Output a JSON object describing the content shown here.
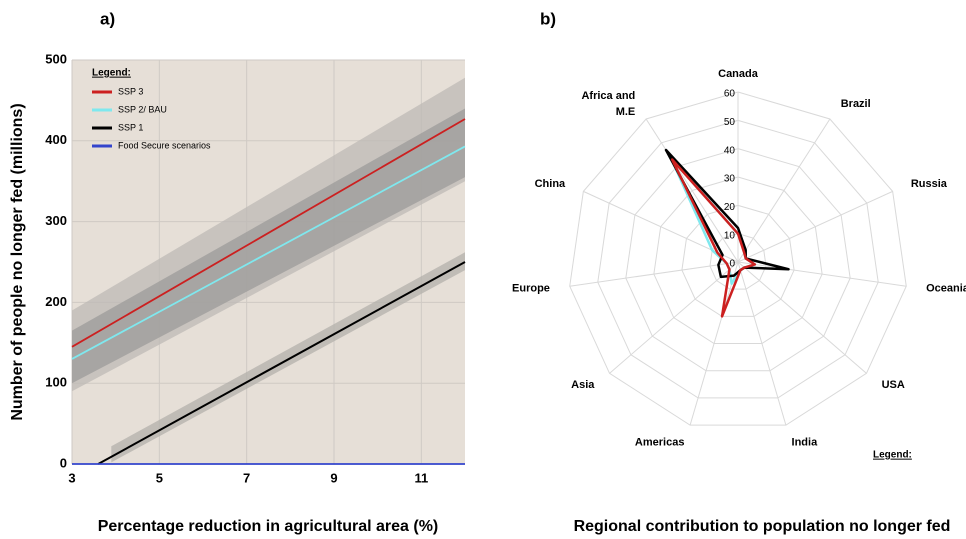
{
  "chart_data": [
    {
      "type": "line",
      "title": "a)",
      "xlabel": "Percentage reduction in agricultural area (%)",
      "ylabel": "Number of people no longer fed (millions)",
      "xlim": [
        3,
        12
      ],
      "xticks": [
        3,
        5,
        7,
        9,
        11
      ],
      "ylim": [
        0,
        500
      ],
      "yticks": [
        0,
        100,
        200,
        300,
        400,
        500
      ],
      "grid": true,
      "legend_title": "Legend:",
      "legend": "upper left",
      "series": [
        {
          "name": "SSP 3",
          "color": "#cc2020",
          "x": [
            3,
            12
          ],
          "values": [
            145,
            427
          ],
          "band_x": [
            3,
            12
          ],
          "band_lower": [
            90,
            350
          ],
          "band_upper": [
            190,
            478
          ],
          "band_color": "#bdbab5"
        },
        {
          "name": "SSP 2/ BAU",
          "color": "#7fe8ee",
          "x": [
            3,
            12
          ],
          "values": [
            130,
            393
          ],
          "band_x": [
            3,
            12
          ],
          "band_lower": [
            100,
            355
          ],
          "band_upper": [
            165,
            440
          ],
          "band_color": "#9c9b99"
        },
        {
          "name": "SSP 1",
          "color": "#000000",
          "x": [
            3.6,
            12
          ],
          "values": [
            0,
            250
          ],
          "band_x": [
            3.9,
            12
          ],
          "band_lower": [
            2,
            240
          ],
          "band_upper": [
            22,
            262
          ],
          "band_color": "#b3b0ab"
        },
        {
          "name": "Food Secure scenarios",
          "color": "#3344cc",
          "x": [
            3,
            12
          ],
          "values": [
            0,
            0
          ]
        }
      ]
    },
    {
      "type": "radar",
      "title": "b)",
      "xlabel": "Regional contribution to population no longer fed",
      "legend_title": "Legend:",
      "categories": [
        "Canada",
        "Brazil",
        "Russia",
        "Oceania",
        "USA",
        "India",
        "Americas",
        "Asia",
        "Europe",
        "China",
        "Africa and M.E"
      ],
      "rlim": [
        0,
        60
      ],
      "rticks": [
        0,
        10,
        20,
        30,
        40,
        50,
        60
      ],
      "series": [
        {
          "name": "SSP 2/ BAU",
          "color": "#7fe8ee",
          "values": [
            10,
            5,
            3,
            6,
            3,
            3,
            8,
            4,
            4,
            10,
            44
          ]
        },
        {
          "name": "SSP 1",
          "color": "#000000",
          "values": [
            12,
            5,
            3,
            18,
            3,
            3,
            5,
            8,
            7,
            6,
            47
          ]
        },
        {
          "name": "SSP 3",
          "color": "#cc2020",
          "values": [
            10,
            4,
            3,
            6,
            3,
            3,
            20,
            4,
            4,
            8,
            43
          ]
        }
      ]
    }
  ]
}
